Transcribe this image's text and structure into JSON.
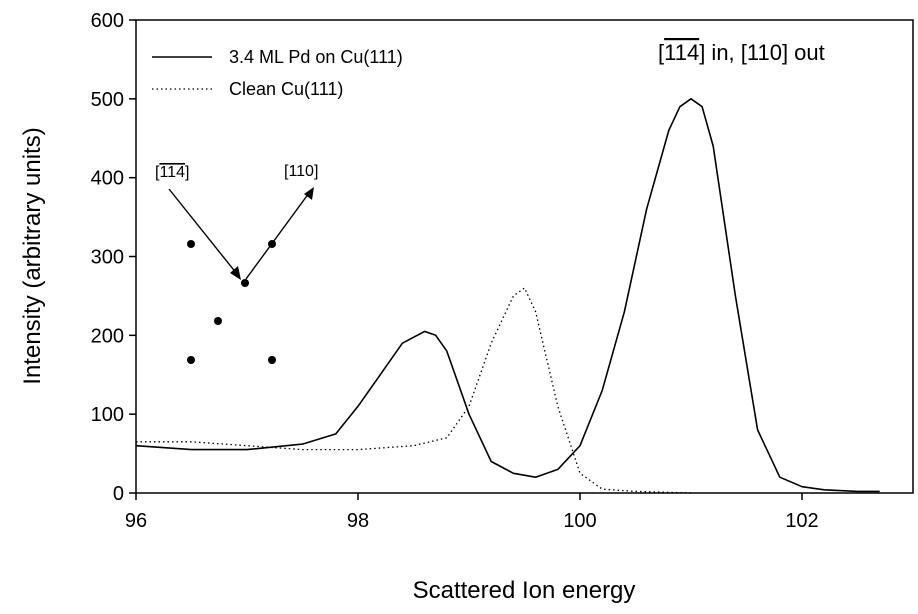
{
  "chart_data": {
    "type": "line",
    "xlabel": "Scattered Ion energy",
    "ylabel": "Intensity (arbitrary units)",
    "xlim": [
      96,
      103
    ],
    "ylim": [
      0,
      600
    ],
    "xticks": [
      "96",
      "98",
      "100",
      "102"
    ],
    "yticks": [
      "0",
      "100",
      "200",
      "300",
      "400",
      "500",
      "600"
    ],
    "grid": false,
    "legend_position": "top-left",
    "annotation": {
      "prefix": "[",
      "overline": "114",
      "suffix": "] in, [110] out"
    },
    "inset": {
      "incoming_prefix": "[",
      "incoming_overline": "114",
      "incoming_suffix": "]",
      "outgoing_label": "[110]"
    },
    "series": [
      {
        "name": "3.4 ML Pd on Cu(111)",
        "style": "solid",
        "x": [
          96.0,
          96.5,
          97.0,
          97.5,
          97.8,
          98.0,
          98.2,
          98.4,
          98.6,
          98.7,
          98.8,
          99.0,
          99.2,
          99.4,
          99.6,
          99.8,
          100.0,
          100.2,
          100.4,
          100.6,
          100.8,
          100.9,
          101.0,
          101.1,
          101.2,
          101.4,
          101.6,
          101.8,
          102.0,
          102.2,
          102.5,
          102.7
        ],
        "y": [
          60,
          55,
          55,
          62,
          75,
          110,
          150,
          190,
          205,
          200,
          180,
          100,
          40,
          25,
          20,
          30,
          60,
          130,
          230,
          360,
          460,
          490,
          500,
          490,
          440,
          250,
          80,
          20,
          8,
          4,
          2,
          2
        ]
      },
      {
        "name": "Clean Cu(111)",
        "style": "dotted",
        "x": [
          96.0,
          96.5,
          97.0,
          97.5,
          98.0,
          98.5,
          98.8,
          99.0,
          99.2,
          99.4,
          99.5,
          99.6,
          99.8,
          100.0,
          100.2,
          100.5,
          101.0
        ],
        "y": [
          65,
          65,
          60,
          55,
          55,
          60,
          70,
          110,
          190,
          250,
          260,
          230,
          110,
          25,
          5,
          2,
          0
        ]
      }
    ]
  }
}
